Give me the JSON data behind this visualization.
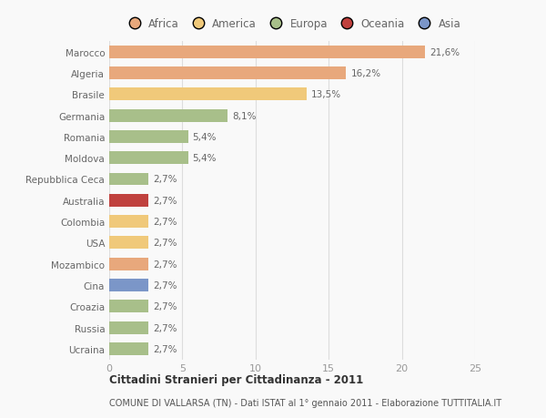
{
  "categories": [
    "Ucraina",
    "Russia",
    "Croazia",
    "Cina",
    "Mozambico",
    "USA",
    "Colombia",
    "Australia",
    "Repubblica Ceca",
    "Moldova",
    "Romania",
    "Germania",
    "Brasile",
    "Algeria",
    "Marocco"
  ],
  "values": [
    2.7,
    2.7,
    2.7,
    2.7,
    2.7,
    2.7,
    2.7,
    2.7,
    2.7,
    5.4,
    5.4,
    8.1,
    13.5,
    16.2,
    21.6
  ],
  "bar_colors": [
    "#a8bf8a",
    "#a8bf8a",
    "#a8bf8a",
    "#7b96c8",
    "#e8a87c",
    "#f0c97a",
    "#f0c97a",
    "#c0413e",
    "#a8bf8a",
    "#a8bf8a",
    "#a8bf8a",
    "#a8bf8a",
    "#f0c97a",
    "#e8a87c",
    "#e8a87c"
  ],
  "labels": [
    "2,7%",
    "2,7%",
    "2,7%",
    "2,7%",
    "2,7%",
    "2,7%",
    "2,7%",
    "2,7%",
    "2,7%",
    "5,4%",
    "5,4%",
    "8,1%",
    "13,5%",
    "16,2%",
    "21,6%"
  ],
  "legend_entries": [
    {
      "label": "Africa",
      "color": "#e8a87c"
    },
    {
      "label": "America",
      "color": "#f0c97a"
    },
    {
      "label": "Europa",
      "color": "#a8bf8a"
    },
    {
      "label": "Oceania",
      "color": "#c0413e"
    },
    {
      "label": "Asia",
      "color": "#7b96c8"
    }
  ],
  "title": "Cittadini Stranieri per Cittadinanza - 2011",
  "subtitle": "COMUNE DI VALLARSA (TN) - Dati ISTAT al 1° gennaio 2011 - Elaborazione TUTTITALIA.IT",
  "xlim": [
    0,
    25
  ],
  "xticks": [
    0,
    5,
    10,
    15,
    20,
    25
  ],
  "background_color": "#f9f9f9",
  "bar_height": 0.6,
  "label_color": "#666666",
  "tick_color": "#999999",
  "grid_color": "#dddddd"
}
